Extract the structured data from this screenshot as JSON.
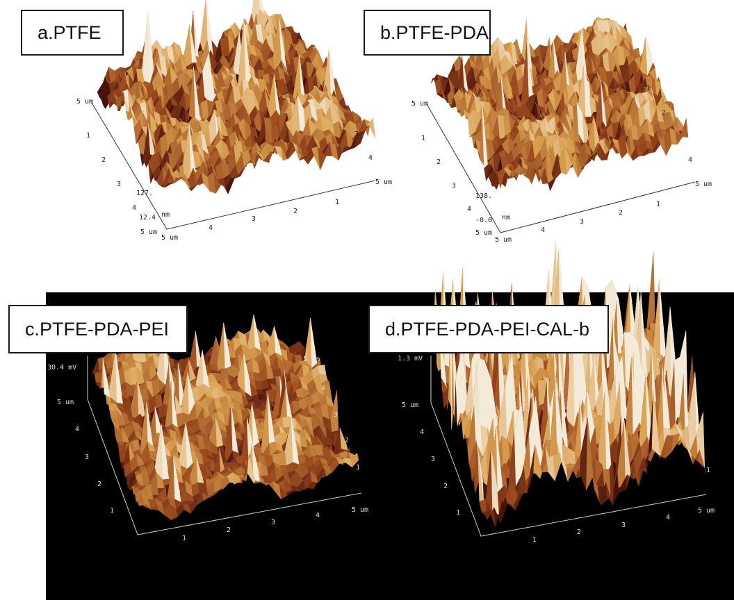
{
  "panels": [
    {
      "id": "a",
      "label": "a.PTFE",
      "z_top": "127.",
      "z_bottom": "12.4",
      "z_unit": "nm",
      "left_axis_ticks": [
        "5 um",
        "1",
        "2",
        "3",
        "4",
        "5 um"
      ],
      "bottom_axis_ticks": [
        "5 um",
        "4",
        "3",
        "2",
        "1"
      ],
      "right_axis_ticks": [
        "1",
        "2",
        "3",
        "4",
        "5 um"
      ],
      "bottom_corner": "5 um",
      "right_corner": "5 um"
    },
    {
      "id": "b",
      "label": "b.PTFE-PDA",
      "z_top": "138.",
      "z_bottom": "-0.0",
      "z_unit": "nm",
      "left_axis_ticks": [
        "5 um",
        "1",
        "2",
        "3",
        "4",
        "5 um"
      ],
      "bottom_axis_ticks": [
        "5 um",
        "4",
        "3",
        "2",
        "1"
      ],
      "right_axis_ticks": [
        "1",
        "2",
        "3",
        "4",
        "5 um"
      ],
      "bottom_corner": "5 um",
      "right_corner": "5 um"
    },
    {
      "id": "c",
      "label": "c.PTFE-PDA-PEI",
      "z_top": "30.4 mV",
      "left_axis_ticks": [
        "5 um",
        "4",
        "3",
        "2",
        "1"
      ],
      "bottom_axis_ticks": [
        "1",
        "2",
        "3",
        "4",
        "5 um"
      ],
      "right_axis_ticks": [
        "5 um",
        "4",
        "3",
        "2",
        "1"
      ]
    },
    {
      "id": "d",
      "label": "d.PTFE-PDA-PEI-CAL-b",
      "z_top": "1.3 mV",
      "left_axis_ticks": [
        "5 um",
        "4",
        "3",
        "2",
        "1"
      ],
      "bottom_axis_ticks": [
        "1",
        "2",
        "3",
        "4",
        "5 um"
      ],
      "right_axis_ticks": [
        "5 um",
        "4",
        "3",
        "2",
        "1"
      ]
    }
  ],
  "colors": {
    "surface_dark": "#4a120c",
    "surface_mid": "#9a4a1e",
    "surface_light": "#d9a050",
    "surface_peak": "#f4ead8",
    "axis_light_bg": "#333333",
    "axis_dark_bg": "#dddddd"
  }
}
